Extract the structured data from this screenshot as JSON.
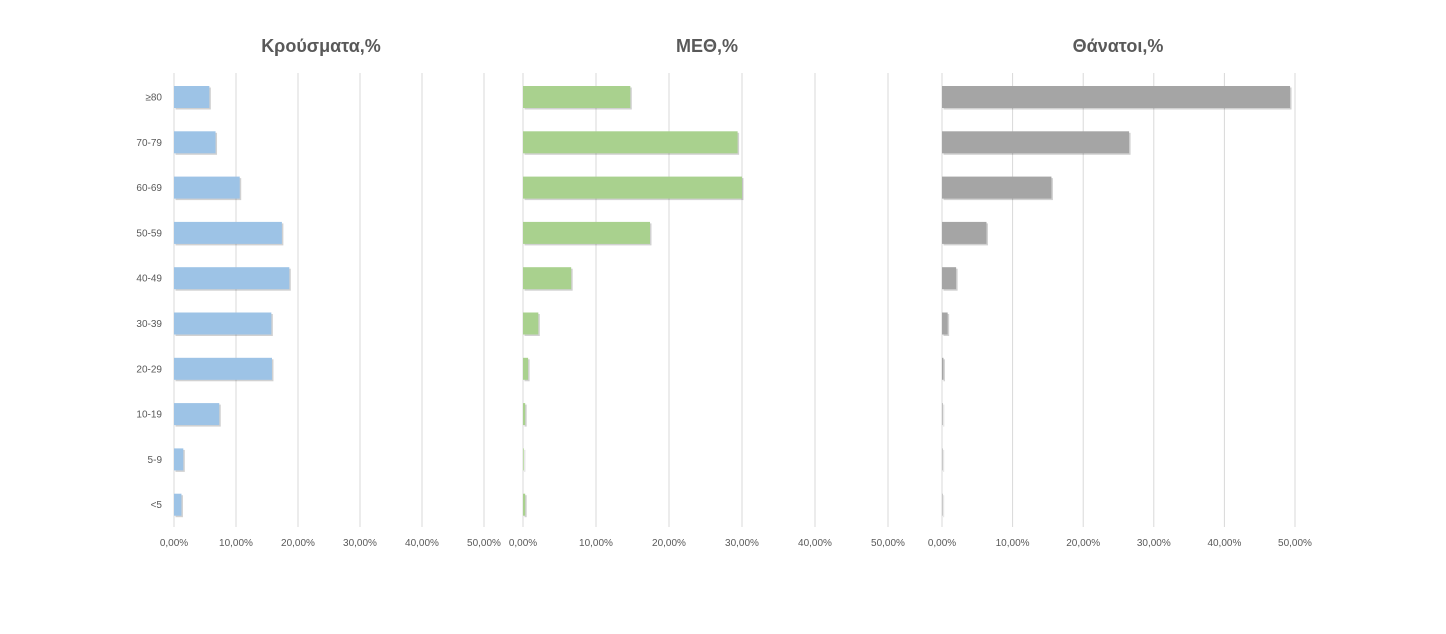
{
  "chart_data": [
    {
      "type": "bar",
      "orientation": "horizontal",
      "title": "Κρούσματα,%",
      "categories": [
        "≥80",
        "70-79",
        "60-69",
        "50-59",
        "40-49",
        "30-39",
        "20-29",
        "10-19",
        "5-9",
        "<5"
      ],
      "values": [
        5.7,
        6.7,
        10.6,
        17.4,
        18.6,
        15.7,
        15.8,
        7.3,
        1.5,
        1.2
      ],
      "xlim": [
        0,
        50
      ],
      "x_ticks": [
        "0,00%",
        "10,00%",
        "20,00%",
        "30,00%",
        "40,00%",
        "50,00%"
      ],
      "grid": true,
      "color": "#9dc3e6"
    },
    {
      "type": "bar",
      "orientation": "horizontal",
      "title": "ΜΕΘ,%",
      "categories": [
        "≥80",
        "70-79",
        "60-69",
        "50-59",
        "40-49",
        "30-39",
        "20-29",
        "10-19",
        "5-9",
        "<5"
      ],
      "values": [
        14.7,
        29.4,
        30.0,
        17.4,
        6.6,
        2.1,
        0.7,
        0.3,
        0.1,
        0.3
      ],
      "xlim": [
        0,
        50
      ],
      "x_ticks": [
        "0,00%",
        "10,00%",
        "20,00%",
        "30,00%",
        "40,00%",
        "50,00%"
      ],
      "grid": true,
      "color": "#a9d18e"
    },
    {
      "type": "bar",
      "orientation": "horizontal",
      "title": "Θάνατοι,%",
      "categories": [
        "≥80",
        "70-79",
        "60-69",
        "50-59",
        "40-49",
        "30-39",
        "20-29",
        "10-19",
        "5-9",
        "<5"
      ],
      "values": [
        49.3,
        26.5,
        15.5,
        6.3,
        2.0,
        0.8,
        0.2,
        0.1,
        0.05,
        0.05
      ],
      "xlim": [
        0,
        50
      ],
      "x_ticks": [
        "0,00%",
        "10,00%",
        "20,00%",
        "30,00%",
        "40,00%",
        "50,00%"
      ],
      "grid": true,
      "color": "#a5a5a5"
    }
  ]
}
